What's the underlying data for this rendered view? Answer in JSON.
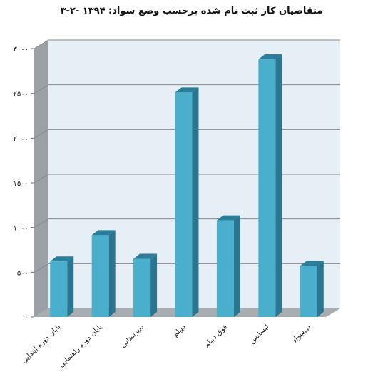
{
  "chart_data": {
    "type": "bar",
    "title": "۳-۲- متقاضیان کار ثبت نام شده برحسب وضع سواد: ۱۳۹۴",
    "categories": [
      "پایان دوره ابتدایی",
      "پایان دوره راهنمایی",
      "دبیرستانی",
      "دیپلم",
      "فوق دیپلم",
      "لیسانس",
      "بی‌سواد"
    ],
    "values": [
      620,
      915,
      650,
      2510,
      1080,
      2880,
      570
    ],
    "ylim": [
      0,
      3000
    ],
    "yticks": [
      0,
      500,
      1000,
      1500,
      2000,
      2500,
      3000
    ],
    "ytick_labels": [
      "۰",
      "۵۰۰",
      "۱۰۰۰",
      "۱۵۰۰",
      "۲۰۰۰",
      "۲۵۰۰",
      "۳۰۰۰"
    ],
    "grid": true,
    "legend": "none",
    "colors": {
      "bar_front": "#4aafcc",
      "bar_side": "#2a7590",
      "bar_top": "#2c7d98",
      "back_wall": "#e6eef6",
      "side_wall": "#9aa0a6",
      "floor": "#a8adb2",
      "grid": "#8a8a8a"
    }
  }
}
